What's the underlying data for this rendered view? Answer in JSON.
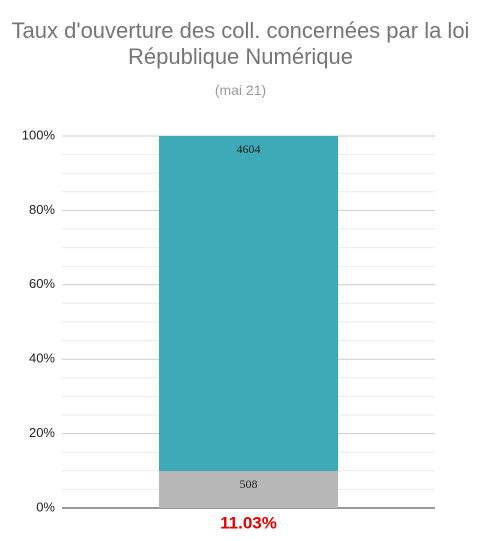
{
  "chart_data": {
    "type": "bar",
    "stacking": "percent",
    "title": "Taux d'ouverture des coll. concernées par la loi République Numérique",
    "subtitle": "(mai 21)",
    "categories": [
      "11.03%"
    ],
    "category_label_color": "#e00000",
    "series": [
      {
        "color": "#b7b7b7",
        "values": [
          508
        ]
      },
      {
        "color": "#3eaab7",
        "values": [
          4604
        ]
      }
    ],
    "ylim": [
      0,
      100
    ],
    "yticks": [
      {
        "value": 0,
        "label": "0%"
      },
      {
        "value": 20,
        "label": "20%"
      },
      {
        "value": 40,
        "label": "40%"
      },
      {
        "value": 60,
        "label": "60%"
      },
      {
        "value": 80,
        "label": "80%"
      },
      {
        "value": 100,
        "label": "100%"
      }
    ],
    "minor_yticks": [
      5,
      10,
      15,
      25,
      30,
      35,
      45,
      50,
      55,
      65,
      70,
      75,
      85,
      90,
      95
    ],
    "grid": true
  }
}
